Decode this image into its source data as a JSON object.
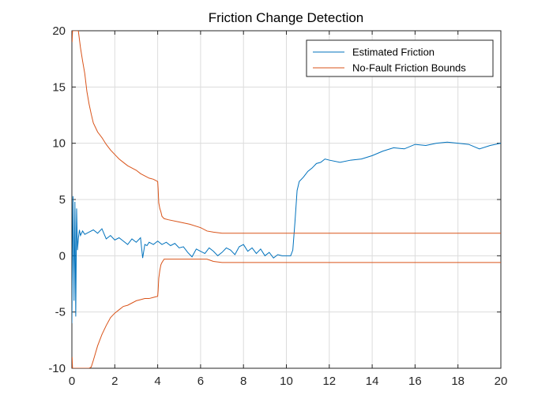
{
  "chart_data": {
    "type": "line",
    "title": "Friction Change Detection",
    "xlabel": "",
    "ylabel": "",
    "xlim": [
      0,
      20
    ],
    "ylim": [
      -10,
      20
    ],
    "xticks": [
      0,
      2,
      4,
      6,
      8,
      10,
      12,
      14,
      16,
      18,
      20
    ],
    "yticks": [
      -10,
      -5,
      0,
      5,
      10,
      15,
      20
    ],
    "grid": true,
    "legend_position": "top-right",
    "series": [
      {
        "name": "Estimated Friction",
        "color": "#0072BD",
        "x": [
          0,
          0.05,
          0.1,
          0.14,
          0.18,
          0.22,
          0.26,
          0.3,
          0.35,
          0.4,
          0.5,
          0.6,
          0.8,
          1.0,
          1.2,
          1.4,
          1.6,
          1.8,
          2.0,
          2.2,
          2.4,
          2.6,
          2.8,
          3.0,
          3.2,
          3.3,
          3.4,
          3.5,
          3.6,
          3.8,
          4.0,
          4.2,
          4.4,
          4.6,
          4.8,
          5.0,
          5.2,
          5.4,
          5.6,
          5.8,
          6.0,
          6.2,
          6.4,
          6.6,
          6.8,
          7.0,
          7.2,
          7.4,
          7.6,
          7.8,
          8.0,
          8.2,
          8.4,
          8.6,
          8.8,
          9.0,
          9.2,
          9.4,
          9.6,
          9.8,
          10.0,
          10.2,
          10.3,
          10.4,
          10.5,
          10.6,
          10.8,
          11.0,
          11.2,
          11.4,
          11.6,
          11.8,
          12.0,
          12.5,
          13.0,
          13.5,
          14.0,
          14.5,
          15.0,
          15.5,
          16.0,
          16.5,
          17.0,
          17.5,
          18.0,
          18.5,
          19.0,
          19.5,
          20.0
        ],
        "y": [
          -6,
          5.3,
          -4,
          4.8,
          -5.4,
          4.2,
          0.5,
          1.5,
          2.3,
          1.8,
          2.2,
          1.9,
          2.1,
          2.3,
          2.0,
          2.4,
          1.5,
          1.8,
          1.4,
          1.6,
          1.3,
          1.0,
          1.5,
          1.2,
          1.6,
          -0.2,
          1.0,
          0.9,
          1.2,
          1.0,
          1.3,
          1.0,
          1.2,
          0.9,
          1.1,
          0.7,
          0.8,
          0.3,
          -0.1,
          0.6,
          0.4,
          0.2,
          0.7,
          0.4,
          0.0,
          0.3,
          0.7,
          0.5,
          0.1,
          0.8,
          1.0,
          0.4,
          0.7,
          0.2,
          0.6,
          0.0,
          0.3,
          -0.2,
          0.1,
          0.0,
          0.0,
          0.0,
          0.5,
          3.0,
          5.8,
          6.6,
          7.0,
          7.5,
          7.8,
          8.2,
          8.3,
          8.6,
          8.5,
          8.3,
          8.5,
          8.6,
          8.9,
          9.3,
          9.6,
          9.5,
          9.9,
          9.8,
          10.0,
          10.1,
          10.0,
          9.9,
          9.5,
          9.8,
          10.0
        ]
      },
      {
        "name": "No-Fault Friction Bounds",
        "color": "#D95319",
        "x": [
          0.01,
          0.03,
          0.05,
          0.1,
          0.2,
          0.3,
          0.4,
          0.5,
          0.6,
          0.7,
          0.8,
          0.9,
          1.0,
          1.2,
          1.4,
          1.6,
          1.8,
          2.0,
          2.2,
          2.4,
          2.6,
          2.8,
          3.0,
          3.2,
          3.4,
          3.6,
          3.8,
          4.0,
          4.02,
          4.05,
          4.1,
          4.15,
          4.2,
          4.3,
          4.5,
          5.0,
          5.5,
          6.0,
          6.3,
          6.6,
          7.0,
          8.0,
          10.0,
          15.0,
          20.0
        ],
        "y": [
          19.0,
          20.0,
          20.0,
          20.0,
          20.0,
          20.0,
          18.5,
          17.3,
          16.2,
          14.6,
          13.5,
          12.6,
          11.8,
          11.0,
          10.5,
          9.9,
          9.4,
          9.0,
          8.6,
          8.3,
          8.0,
          7.8,
          7.6,
          7.3,
          7.1,
          6.9,
          6.8,
          6.6,
          6.0,
          4.7,
          4.2,
          3.9,
          3.5,
          3.3,
          3.2,
          3.0,
          2.8,
          2.5,
          2.2,
          2.1,
          2.0,
          2.0,
          2.0,
          2.0,
          2.0
        ],
        "y_lower": [
          -9.0,
          -10.0,
          -10.0,
          -10.0,
          -10.0,
          -10.0,
          -10.0,
          -10.0,
          -10.0,
          -10.0,
          -10.0,
          -9.9,
          -9.3,
          -8.0,
          -7.0,
          -6.2,
          -5.5,
          -5.1,
          -4.8,
          -4.5,
          -4.4,
          -4.2,
          -4.0,
          -3.9,
          -3.8,
          -3.8,
          -3.7,
          -3.6,
          -3.1,
          -2.0,
          -1.3,
          -0.8,
          -0.6,
          -0.3,
          -0.3,
          -0.3,
          -0.3,
          -0.3,
          -0.3,
          -0.5,
          -0.6,
          -0.6,
          -0.6,
          -0.6,
          -0.6
        ]
      }
    ]
  }
}
